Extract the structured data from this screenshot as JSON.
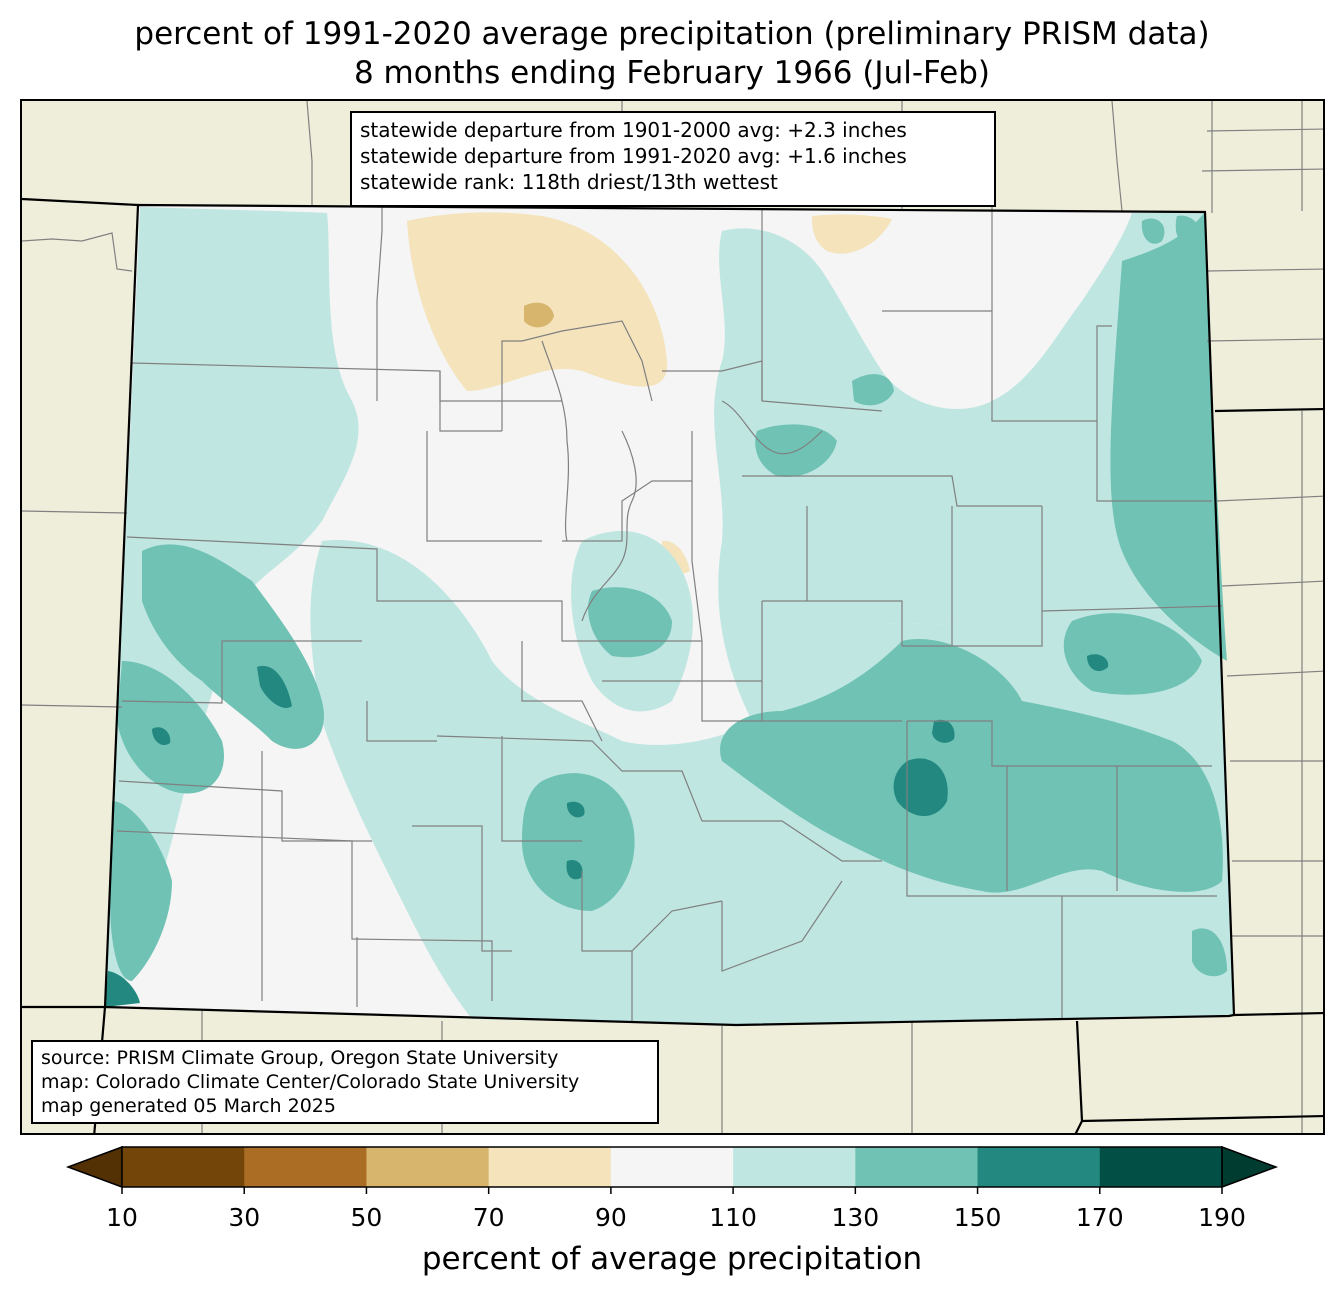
{
  "title": {
    "line1": "percent of 1991-2020 average precipitation (preliminary PRISM data)",
    "line2": "8 months ending February 1966 (Jul-Feb)"
  },
  "stats": {
    "departure_1901_2000": "statewide departure from 1901-2000 avg: +2.3 inches",
    "departure_1991_2020": "statewide departure from 1991-2020 avg: +1.6 inches",
    "rank": "statewide rank: 118th driest/13th wettest"
  },
  "credits": {
    "source": "source: PRISM Climate Group, Oregon State University",
    "map": "map: Colorado Climate Center/Colorado State University",
    "generated": "map generated 05 March 2025"
  },
  "colorbar": {
    "label": "percent of average precipitation",
    "ticks": [
      "10",
      "30",
      "50",
      "70",
      "90",
      "110",
      "130",
      "150",
      "170",
      "190"
    ],
    "bins": [
      {
        "range": "10-30",
        "color": "#734509"
      },
      {
        "range": "30-50",
        "color": "#ab6c23"
      },
      {
        "range": "50-70",
        "color": "#d8b56d"
      },
      {
        "range": "70-90",
        "color": "#f4e3bb"
      },
      {
        "range": "90-110",
        "color": "#f4f5f4"
      },
      {
        "range": "110-130",
        "color": "#bfe6e1"
      },
      {
        "range": "130-150",
        "color": "#6fc2b4"
      },
      {
        "range": "150-170",
        "color": "#238980"
      },
      {
        "range": "170-190",
        "color": "#014f45"
      }
    ],
    "under_color": "#543005",
    "over_color": "#003c30"
  },
  "map_colors": {
    "land_outside": "#efeedb",
    "county_line": "#808080",
    "state_line": "#000000"
  }
}
